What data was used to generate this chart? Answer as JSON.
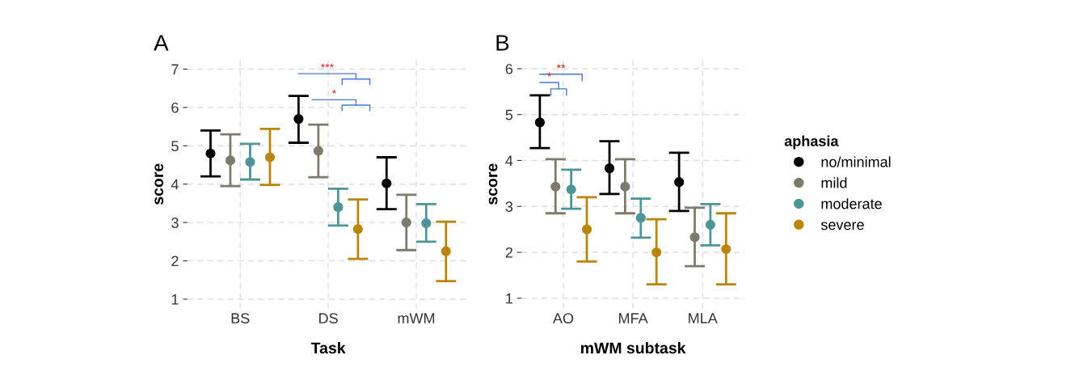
{
  "chart_data": [
    {
      "type": "scatter",
      "title": "A",
      "xlabel": "Task",
      "ylabel": "score",
      "categories": [
        "BS",
        "DS",
        "mWM"
      ],
      "ylim": [
        0.75,
        7.25
      ],
      "yticks": [
        1,
        2,
        3,
        4,
        5,
        6,
        7
      ],
      "grid": true,
      "marker": "circle",
      "series": [
        {
          "color": "#000000",
          "values": [
            4.8,
            5.7,
            4.02
          ],
          "errors": [
            [
              4.2,
              5.4
            ],
            [
              5.08,
              6.3
            ],
            [
              3.35,
              4.7
            ]
          ]
        },
        {
          "color": "#7d7b6e",
          "values": [
            4.62,
            4.87,
            3.0
          ],
          "errors": [
            [
              3.95,
              5.3
            ],
            [
              4.18,
              5.55
            ],
            [
              2.28,
              3.72
            ]
          ]
        },
        {
          "color": "#4e9597",
          "values": [
            4.58,
            3.4,
            2.98
          ],
          "errors": [
            [
              4.12,
              5.05
            ],
            [
              2.92,
              3.88
            ],
            [
              2.5,
              3.48
            ]
          ]
        },
        {
          "color": "#b8860b",
          "values": [
            4.7,
            2.83,
            2.25
          ],
          "errors": [
            [
              3.98,
              5.44
            ],
            [
              2.05,
              3.6
            ],
            [
              1.47,
              3.02
            ]
          ]
        }
      ],
      "annotations": [
        "***",
        "*"
      ]
    },
    {
      "type": "scatter",
      "title": "B",
      "xlabel": "mWM subtask",
      "ylabel": "score",
      "legend_title": "aphasia",
      "categories": [
        "AO",
        "MFA",
        "MLA"
      ],
      "ylim": [
        0.77,
        6.2
      ],
      "yticks": [
        1,
        2,
        3,
        4,
        5,
        6
      ],
      "grid": true,
      "legend": "right",
      "marker": "circle",
      "series": [
        {
          "name": "no/minimal",
          "color": "#000000",
          "values": [
            4.83,
            3.83,
            3.53
          ],
          "errors": [
            [
              4.27,
              5.42
            ],
            [
              3.27,
              4.42
            ],
            [
              2.9,
              4.17
            ]
          ]
        },
        {
          "name": "mild",
          "color": "#7d7b6e",
          "values": [
            3.43,
            3.43,
            2.33
          ],
          "errors": [
            [
              2.85,
              4.03
            ],
            [
              2.85,
              4.03
            ],
            [
              1.7,
              2.97
            ]
          ]
        },
        {
          "name": "moderate",
          "color": "#4e9597",
          "values": [
            3.37,
            2.75,
            2.6
          ],
          "errors": [
            [
              2.95,
              3.8
            ],
            [
              2.32,
              3.17
            ],
            [
              2.15,
              3.05
            ]
          ]
        },
        {
          "name": "severe",
          "color": "#b8860b",
          "values": [
            2.5,
            2.0,
            2.07
          ],
          "errors": [
            [
              1.8,
              3.2
            ],
            [
              1.3,
              2.72
            ],
            [
              1.3,
              2.85
            ]
          ]
        }
      ],
      "annotations": [
        "**",
        "*"
      ]
    }
  ]
}
